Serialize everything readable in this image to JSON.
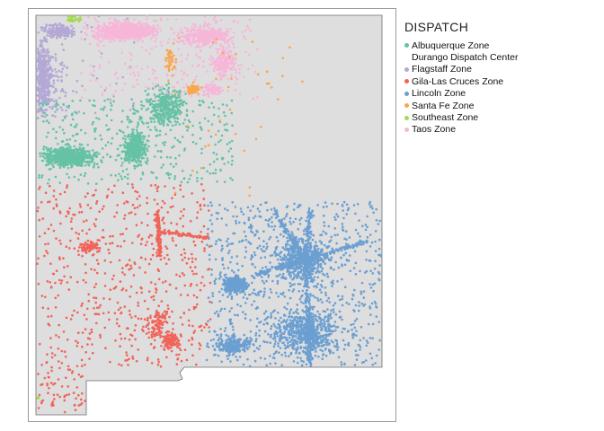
{
  "legend": {
    "title": "DISPATCH",
    "items": [
      {
        "label": "Albuquerque Zone",
        "color": "#66c2a5"
      },
      {
        "label": "Durango Dispatch Center",
        "color": "#ffffff"
      },
      {
        "label": "Flagstaff Zone",
        "color": "#b3a8d6"
      },
      {
        "label": "Gila-Las Cruces Zone",
        "color": "#f0645a"
      },
      {
        "label": "Lincoln Zone",
        "color": "#6b9fd1"
      },
      {
        "label": "Santa Fe Zone",
        "color": "#f9a64d"
      },
      {
        "label": "Southeast Zone",
        "color": "#a6d854"
      },
      {
        "label": "Taos Zone",
        "color": "#f7b6d8"
      }
    ]
  },
  "map": {
    "region": "New Mexico",
    "fill_color": "#dedede",
    "outline_color": "#6e6e6e"
  }
}
